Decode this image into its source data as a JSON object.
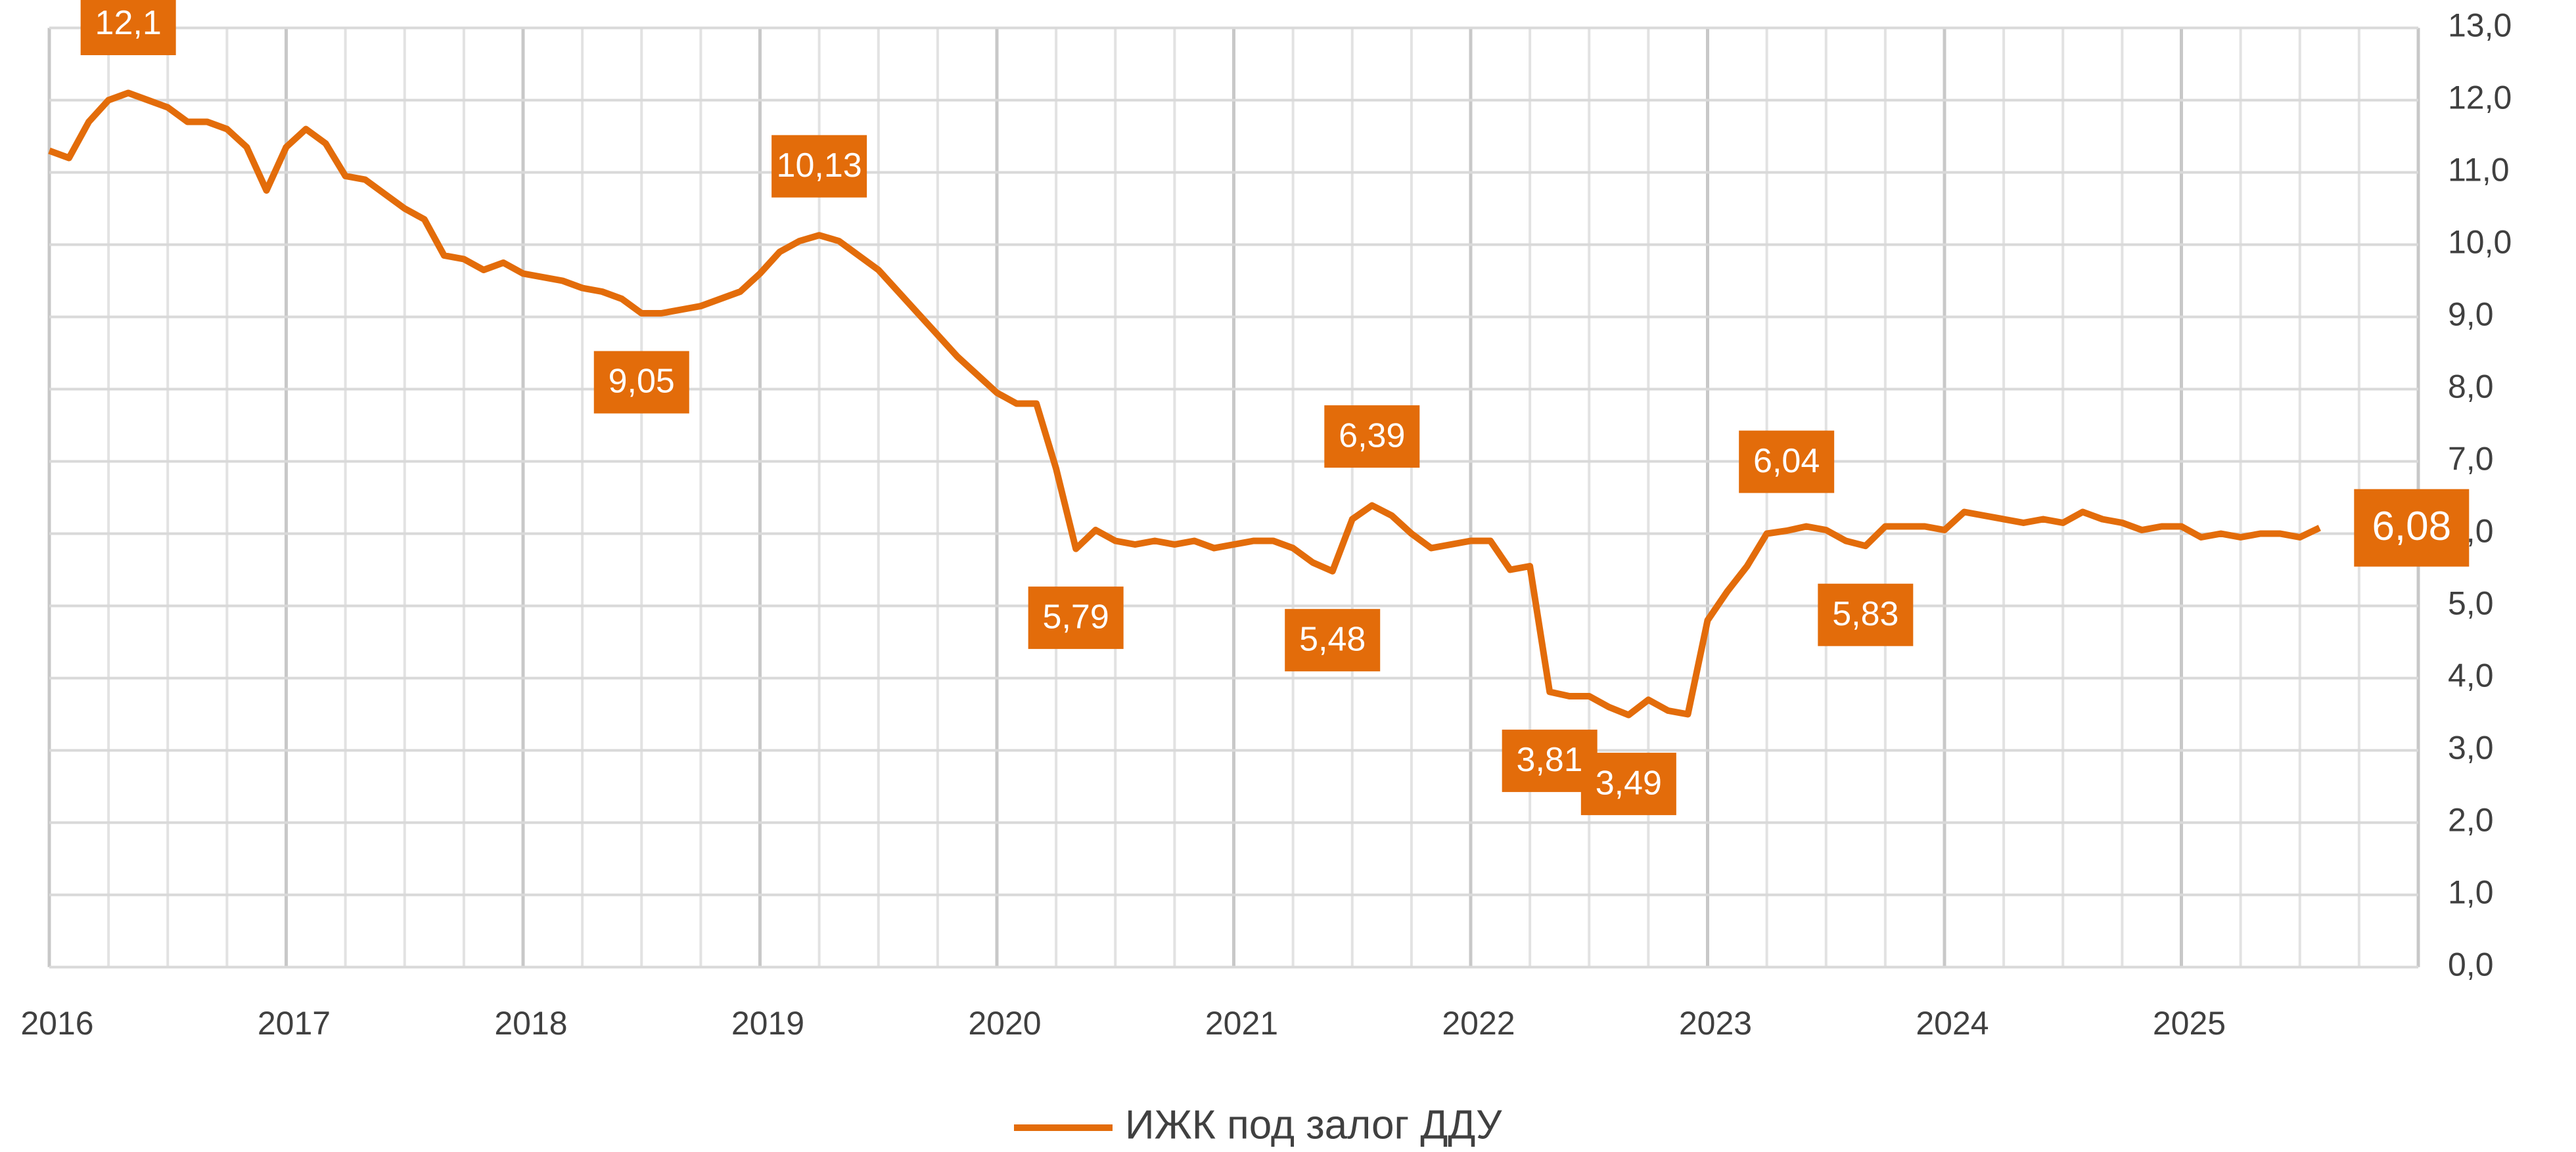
{
  "chart_data": {
    "type": "line",
    "categories": [
      "2016",
      null,
      null,
      null,
      null,
      null,
      null,
      null,
      null,
      null,
      null,
      null,
      "2017",
      null,
      null,
      null,
      null,
      null,
      null,
      null,
      null,
      null,
      null,
      null,
      "2018",
      null,
      null,
      null,
      null,
      null,
      null,
      null,
      null,
      null,
      null,
      null,
      "2019",
      null,
      null,
      null,
      null,
      null,
      null,
      null,
      null,
      null,
      null,
      null,
      "2020",
      null,
      null,
      null,
      null,
      null,
      null,
      null,
      null,
      null,
      null,
      null,
      "2021",
      null,
      null,
      null,
      null,
      null,
      null,
      null,
      null,
      null,
      null,
      null,
      "2022",
      null,
      null,
      null,
      null,
      null,
      null,
      null,
      null,
      null,
      null,
      null,
      "2023",
      null,
      null,
      null,
      null,
      null,
      null,
      null,
      null,
      null,
      null,
      null,
      "2024",
      null,
      null,
      null,
      null,
      null,
      null,
      null,
      null,
      null,
      null,
      null,
      "2025",
      null,
      null,
      null,
      null,
      null,
      null,
      null,
      null,
      null,
      null,
      null
    ],
    "series": [
      {
        "name": "ИЖК под залог ДДУ",
        "color": "#e36c0a",
        "values": [
          11.3,
          11.2,
          11.7,
          12.0,
          12.1,
          12.0,
          11.9,
          11.7,
          11.7,
          11.6,
          11.35,
          10.75,
          11.35,
          11.6,
          11.4,
          10.95,
          10.9,
          10.7,
          10.5,
          10.35,
          9.85,
          9.8,
          9.65,
          9.75,
          9.6,
          9.55,
          9.5,
          9.4,
          9.35,
          9.25,
          9.05,
          9.05,
          9.1,
          9.15,
          9.25,
          9.35,
          9.6,
          9.9,
          10.05,
          10.13,
          10.05,
          9.85,
          9.65,
          9.35,
          9.05,
          8.75,
          8.45,
          8.2,
          7.95,
          7.8,
          7.8,
          6.9,
          5.79,
          6.05,
          5.9,
          5.85,
          5.9,
          5.85,
          5.9,
          5.8,
          5.85,
          5.9,
          5.9,
          5.8,
          5.6,
          5.48,
          6.2,
          6.39,
          6.25,
          6.0,
          5.8,
          5.85,
          5.9,
          5.9,
          5.5,
          5.55,
          3.81,
          3.75,
          3.75,
          3.6,
          3.49,
          3.7,
          3.55,
          3.5,
          4.8,
          5.2,
          5.55,
          6.0,
          6.04,
          6.1,
          6.05,
          5.9,
          5.83,
          6.1,
          6.1,
          6.1,
          6.05,
          6.3,
          6.25,
          6.2,
          6.15,
          6.2,
          6.15,
          6.3,
          6.2,
          6.15,
          6.05,
          6.1,
          6.1,
          5.95,
          6.0,
          5.95,
          6.0,
          6.0,
          5.95,
          6.08,
          null,
          null,
          null,
          null
        ],
        "value_labels": [
          null,
          null,
          null,
          null,
          "12,1",
          null,
          null,
          null,
          null,
          null,
          null,
          null,
          null,
          null,
          null,
          null,
          null,
          null,
          null,
          null,
          null,
          null,
          null,
          null,
          null,
          null,
          null,
          null,
          null,
          null,
          "9,05",
          null,
          null,
          null,
          null,
          null,
          null,
          null,
          null,
          "10,13",
          null,
          null,
          null,
          null,
          null,
          null,
          null,
          null,
          null,
          null,
          null,
          null,
          "5,79",
          null,
          null,
          null,
          null,
          null,
          null,
          null,
          null,
          null,
          null,
          null,
          null,
          "5,48",
          null,
          "6,39",
          null,
          null,
          null,
          null,
          null,
          null,
          null,
          null,
          "3,81",
          null,
          null,
          null,
          "3,49",
          null,
          null,
          null,
          null,
          null,
          null,
          null,
          "6,04",
          null,
          null,
          null,
          "5,83",
          null,
          null,
          null,
          null,
          null,
          null,
          null,
          null,
          null,
          null,
          null,
          null,
          null,
          null,
          null,
          null,
          null,
          null,
          null,
          null,
          null,
          null,
          "6,08",
          null,
          null,
          null,
          null
        ]
      }
    ],
    "ylim": [
      0,
      13
    ],
    "yticks": [
      {
        "value": 0,
        "label": "0,0"
      },
      {
        "value": 1,
        "label": "1,0"
      },
      {
        "value": 2,
        "label": "2,0"
      },
      {
        "value": 3,
        "label": "3,0"
      },
      {
        "value": 4,
        "label": "4,0"
      },
      {
        "value": 5,
        "label": "5,0"
      },
      {
        "value": 6,
        "label": "6,0"
      },
      {
        "value": 7,
        "label": "7,0"
      },
      {
        "value": 8,
        "label": "8,0"
      },
      {
        "value": 9,
        "label": "9,0"
      },
      {
        "value": 10,
        "label": "10,0"
      },
      {
        "value": 11,
        "label": "11,0"
      },
      {
        "value": 12,
        "label": "12,0"
      },
      {
        "value": 13,
        "label": "13,0"
      }
    ],
    "grid": true,
    "y_axis_side": "right",
    "legend": "bottom"
  }
}
